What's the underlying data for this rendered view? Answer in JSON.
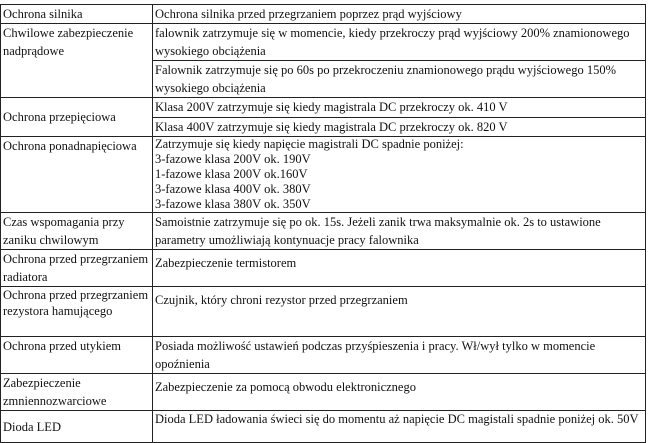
{
  "rows": [
    {
      "label": "Ochrona silnika",
      "cells": [
        "Ochrona silnika przed przegrzaniem poprzez prąd wyjściowy"
      ]
    },
    {
      "label": "Chwilowe zabezpieczenie nadprądowe",
      "cells": [
        "falownik zatrzymuje się w momencie, kiedy przekroczy prąd wyjściowy 200% znamionowego wysokiego obciążenia",
        "Falownik zatrzymuje się po 60s po przekroczeniu znamionowego prądu wyjściowego 150% wysokiego obciążenia"
      ]
    },
    {
      "label": "Ochrona przepięciowa",
      "cells": [
        "Klasa 200V zatrzymuje się kiedy magistrala DC przekroczy ok. 410 V",
        "Klasa 400V zatrzymuje się kiedy magistrala DC przekroczy ok. 820 V"
      ]
    },
    {
      "label": "Ochrona ponadnapięciowa",
      "lines": [
        "Zatrzymuje się kiedy napięcie magistrali DC spadnie poniżej:",
        "3-fazowe klasa 200V ok. 190V",
        "1-fazowe klasa 200V ok.160V",
        "3-fazowe klasa 400V ok. 380V",
        "3-fazowe klasa 380V ok. 350V"
      ]
    },
    {
      "label": "Czas wspomagania przy zaniku chwilowym",
      "cells": [
        "Samoistnie zatrzymuje się po ok. 15s. Jeżeli zanik trwa maksymalnie ok. 2s to ustawione parametry umożliwiają kontynuacje pracy falownika"
      ]
    },
    {
      "label": "Ochrona przed przegrzaniem radiatora",
      "cells": [
        "Zabezpieczenie termistorem"
      ]
    },
    {
      "label": "Ochrona przed przegrzaniem rezystora hamującego",
      "cells": [
        "Czujnik, który chroni rezystor przed przegrzaniem"
      ]
    },
    {
      "label": "Ochrona przed utykiem",
      "cells": [
        "Posiada możliwość ustawień podczas przyśpieszenia i pracy. Wł/wył tylko w momencie opoźnienia"
      ]
    },
    {
      "label": "Zabezpieczenie zmniennozwarciowe",
      "cells": [
        "Zabezpieczenie za pomocą obwodu elektronicznego"
      ]
    },
    {
      "label": "Dioda LED",
      "cells": [
        "Dioda LED ładowania świeci się do momentu aż napięcie DC magistali spadnie poniżej ok. 50V"
      ]
    }
  ]
}
